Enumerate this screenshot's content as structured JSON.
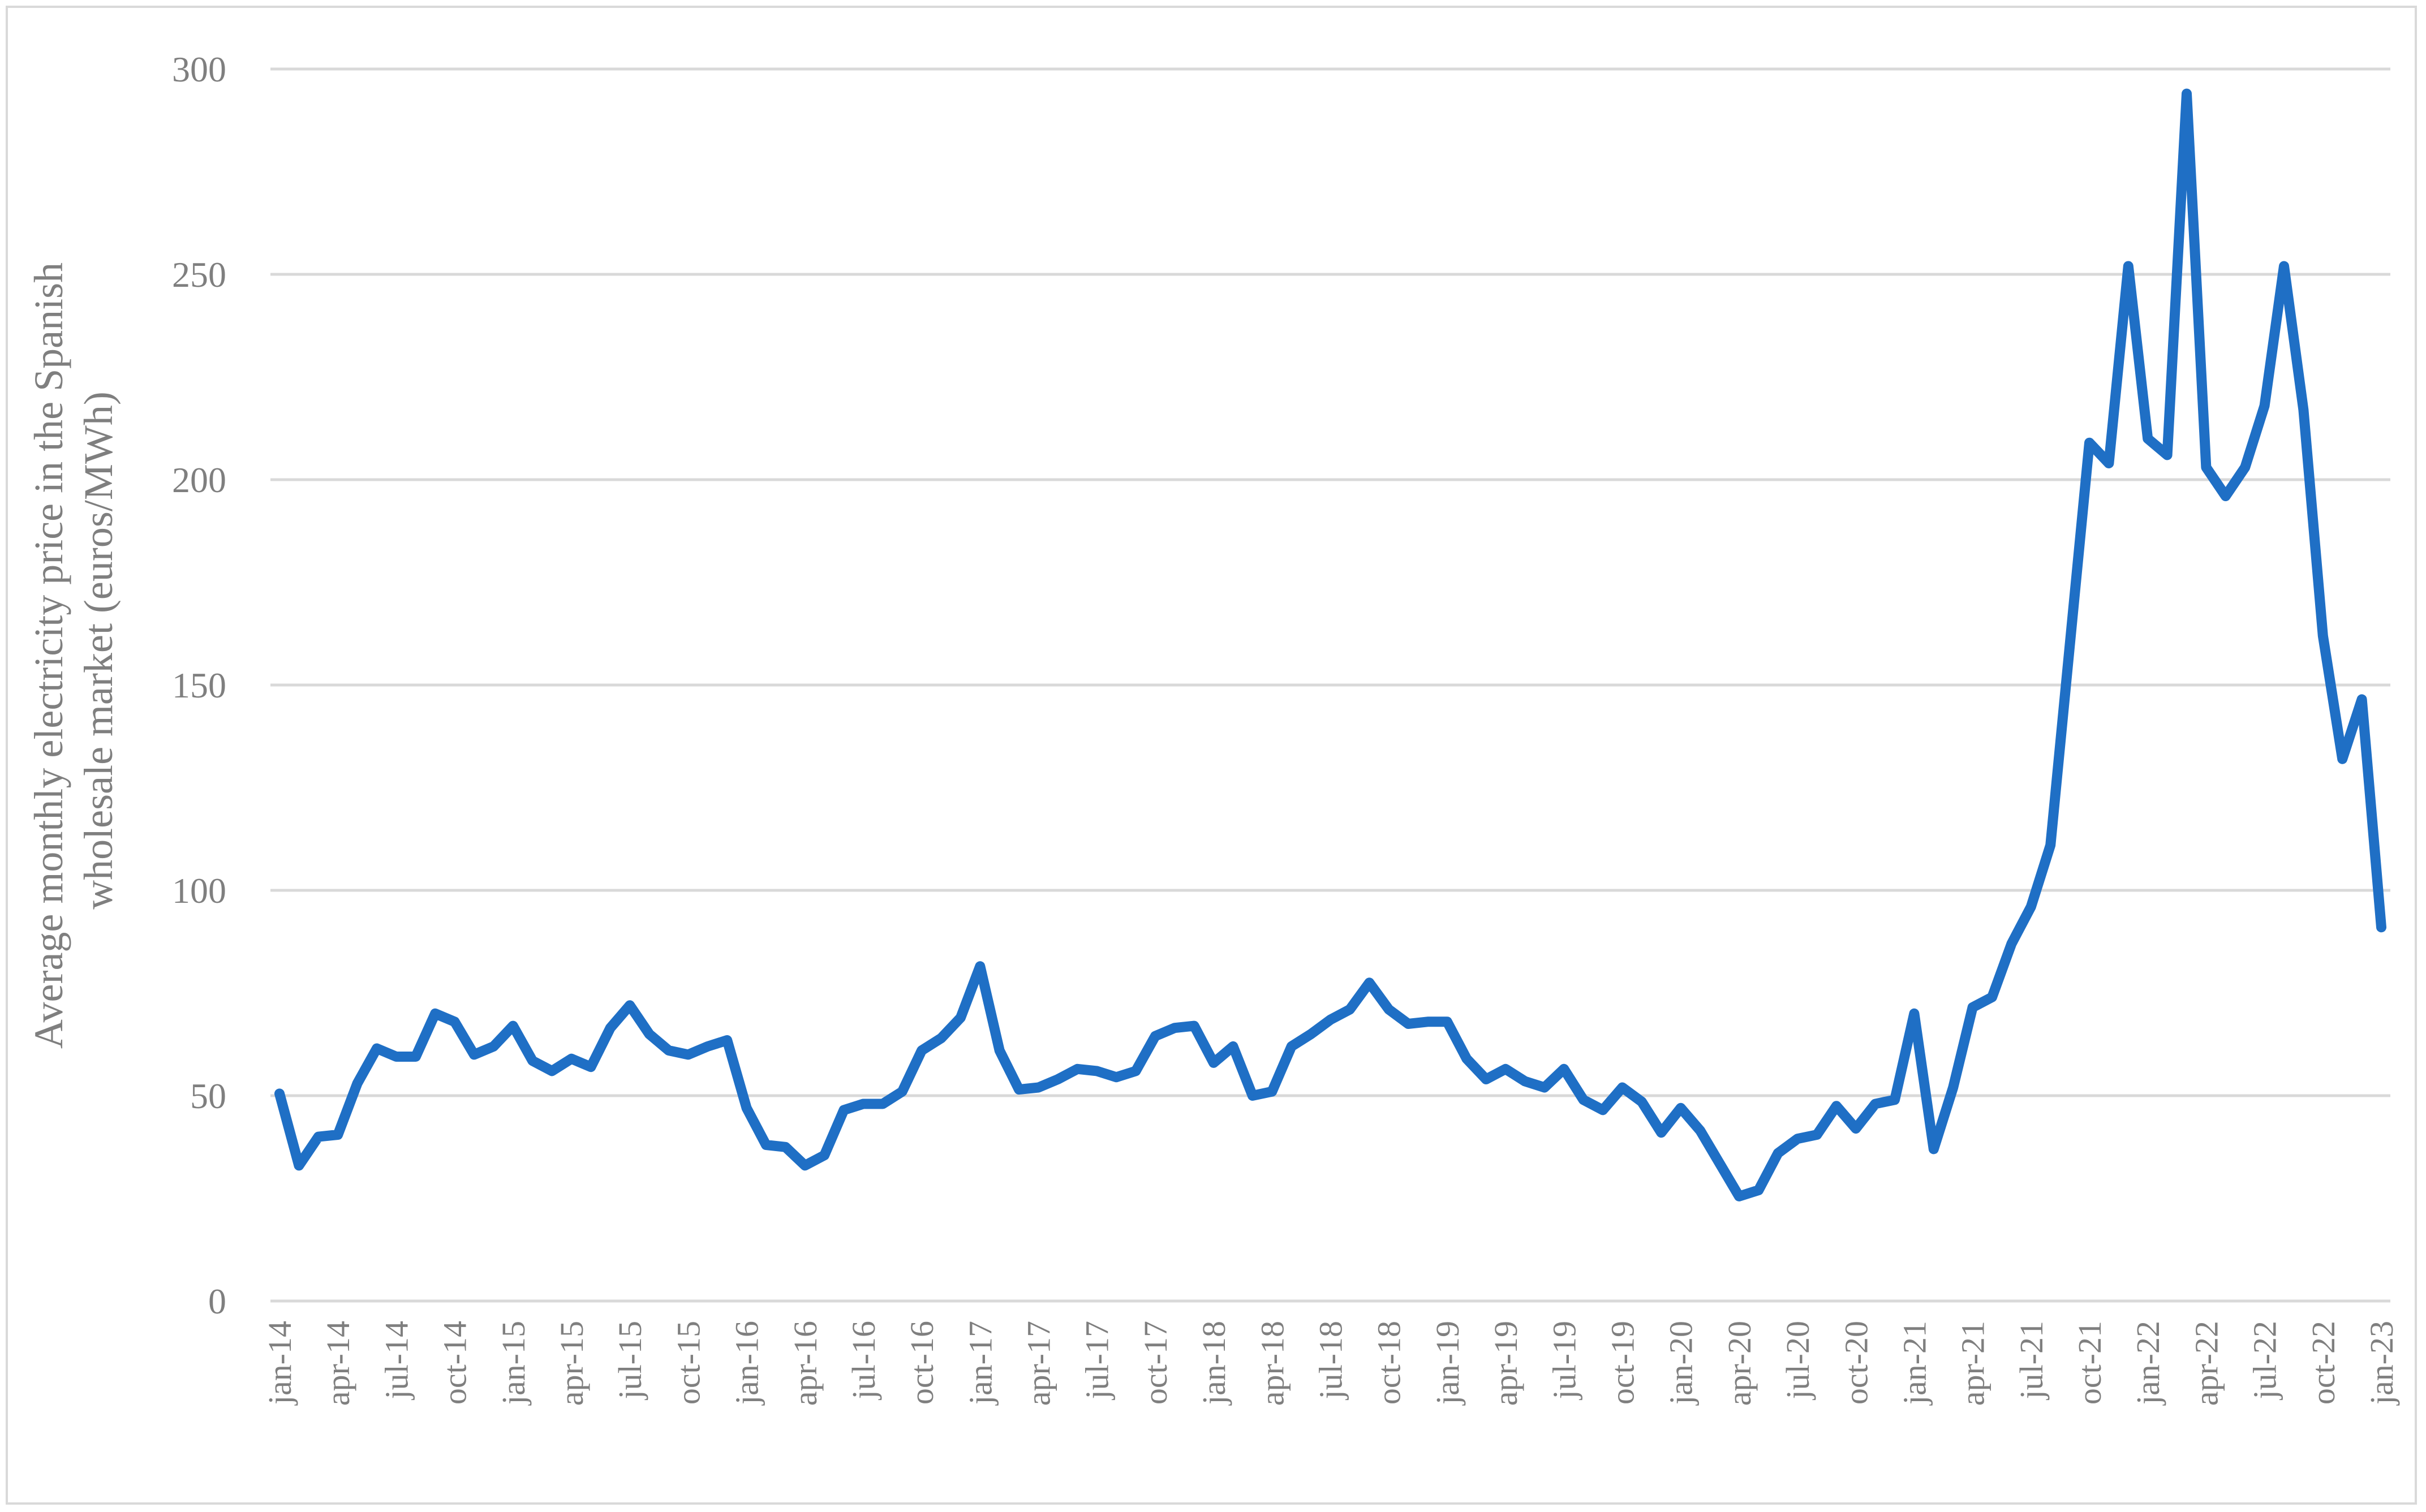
{
  "chart_data": {
    "type": "line",
    "title": "",
    "ylabel_lines": [
      "Average monthly electricity price in the Spanish",
      "wholesale market (euros/MWh)"
    ],
    "xlabel": "",
    "ylim": [
      0,
      300
    ],
    "yticks": [
      0,
      50,
      100,
      150,
      200,
      250,
      300
    ],
    "grid": true,
    "legend": "none",
    "line_color": "#1f6fc5",
    "grid_color": "#d9d9d9",
    "x_tick_labels": [
      "jan-14",
      "apr-14",
      "jul-14",
      "oct-14",
      "jan-15",
      "apr-15",
      "jul-15",
      "oct-15",
      "jan-16",
      "apr-16",
      "jul-16",
      "oct-16",
      "jan-17",
      "apr-17",
      "jul-17",
      "oct-17",
      "jan-18",
      "apr-18",
      "jul-18",
      "oct-18",
      "jan-19",
      "apr-19",
      "jul-19",
      "oct-19",
      "jan-20",
      "apr-20",
      "jul-20",
      "oct-20",
      "jan-21",
      "apr-21",
      "jul-21",
      "oct-21",
      "jan-22",
      "apr-22",
      "jul-22",
      "oct-22",
      "jan-23"
    ],
    "x": [
      "jan-14",
      "feb-14",
      "mar-14",
      "apr-14",
      "may-14",
      "jun-14",
      "jul-14",
      "aug-14",
      "sep-14",
      "oct-14",
      "nov-14",
      "dec-14",
      "jan-15",
      "feb-15",
      "mar-15",
      "apr-15",
      "may-15",
      "jun-15",
      "jul-15",
      "aug-15",
      "sep-15",
      "oct-15",
      "nov-15",
      "dec-15",
      "jan-16",
      "feb-16",
      "mar-16",
      "apr-16",
      "may-16",
      "jun-16",
      "jul-16",
      "aug-16",
      "sep-16",
      "oct-16",
      "nov-16",
      "dec-16",
      "jan-17",
      "feb-17",
      "mar-17",
      "apr-17",
      "may-17",
      "jun-17",
      "jul-17",
      "aug-17",
      "sep-17",
      "oct-17",
      "nov-17",
      "dec-17",
      "jan-18",
      "feb-18",
      "mar-18",
      "apr-18",
      "may-18",
      "jun-18",
      "jul-18",
      "aug-18",
      "sep-18",
      "oct-18",
      "nov-18",
      "dec-18",
      "jan-19",
      "feb-19",
      "mar-19",
      "apr-19",
      "may-19",
      "jun-19",
      "jul-19",
      "aug-19",
      "sep-19",
      "oct-19",
      "nov-19",
      "dec-19",
      "jan-20",
      "feb-20",
      "mar-20",
      "apr-20",
      "may-20",
      "jun-20",
      "jul-20",
      "aug-20",
      "sep-20",
      "oct-20",
      "nov-20",
      "dec-20",
      "jan-21",
      "feb-21",
      "mar-21",
      "apr-21",
      "may-21",
      "jun-21",
      "jul-21",
      "aug-21",
      "sep-21",
      "oct-21",
      "nov-21",
      "dec-21",
      "jan-22",
      "feb-22",
      "mar-22",
      "apr-22",
      "may-22",
      "jun-22",
      "jul-22",
      "aug-22",
      "sep-22",
      "oct-22",
      "nov-22",
      "dec-22",
      "jan-23"
    ],
    "values": [
      50.5,
      33.0,
      40.0,
      40.5,
      53.0,
      61.5,
      59.5,
      59.5,
      70.0,
      68.0,
      60.0,
      62.0,
      67.0,
      58.5,
      56.0,
      59.0,
      57.0,
      66.5,
      72.0,
      65.0,
      61.0,
      60.0,
      62.0,
      63.5,
      47.0,
      38.0,
      37.5,
      33.0,
      35.5,
      46.5,
      48.0,
      48.0,
      51.0,
      61.0,
      64.0,
      69.0,
      81.5,
      61.0,
      51.5,
      52.0,
      54.0,
      56.5,
      56.0,
      54.5,
      56.0,
      64.5,
      66.5,
      67.0,
      58.0,
      62.0,
      50.0,
      51.0,
      62.0,
      65.0,
      68.5,
      71.0,
      77.5,
      71.0,
      67.5,
      68.0,
      68.0,
      59.0,
      54.0,
      56.5,
      53.5,
      52.0,
      56.5,
      49.0,
      46.5,
      52.0,
      48.5,
      41.0,
      47.0,
      41.5,
      33.5,
      25.5,
      27.0,
      36.0,
      39.5,
      40.5,
      47.5,
      42.0,
      48.0,
      49.0,
      70.0,
      37.0,
      52.0,
      71.5,
      74.0,
      87.0,
      96.0,
      111.0,
      160.0,
      209.0,
      204.0,
      252.0,
      210.0,
      206.0,
      294.0,
      203.0,
      196.0,
      203.0,
      218.0,
      252.0,
      217.0,
      162.0,
      132.0,
      146.5,
      91.0
    ]
  }
}
